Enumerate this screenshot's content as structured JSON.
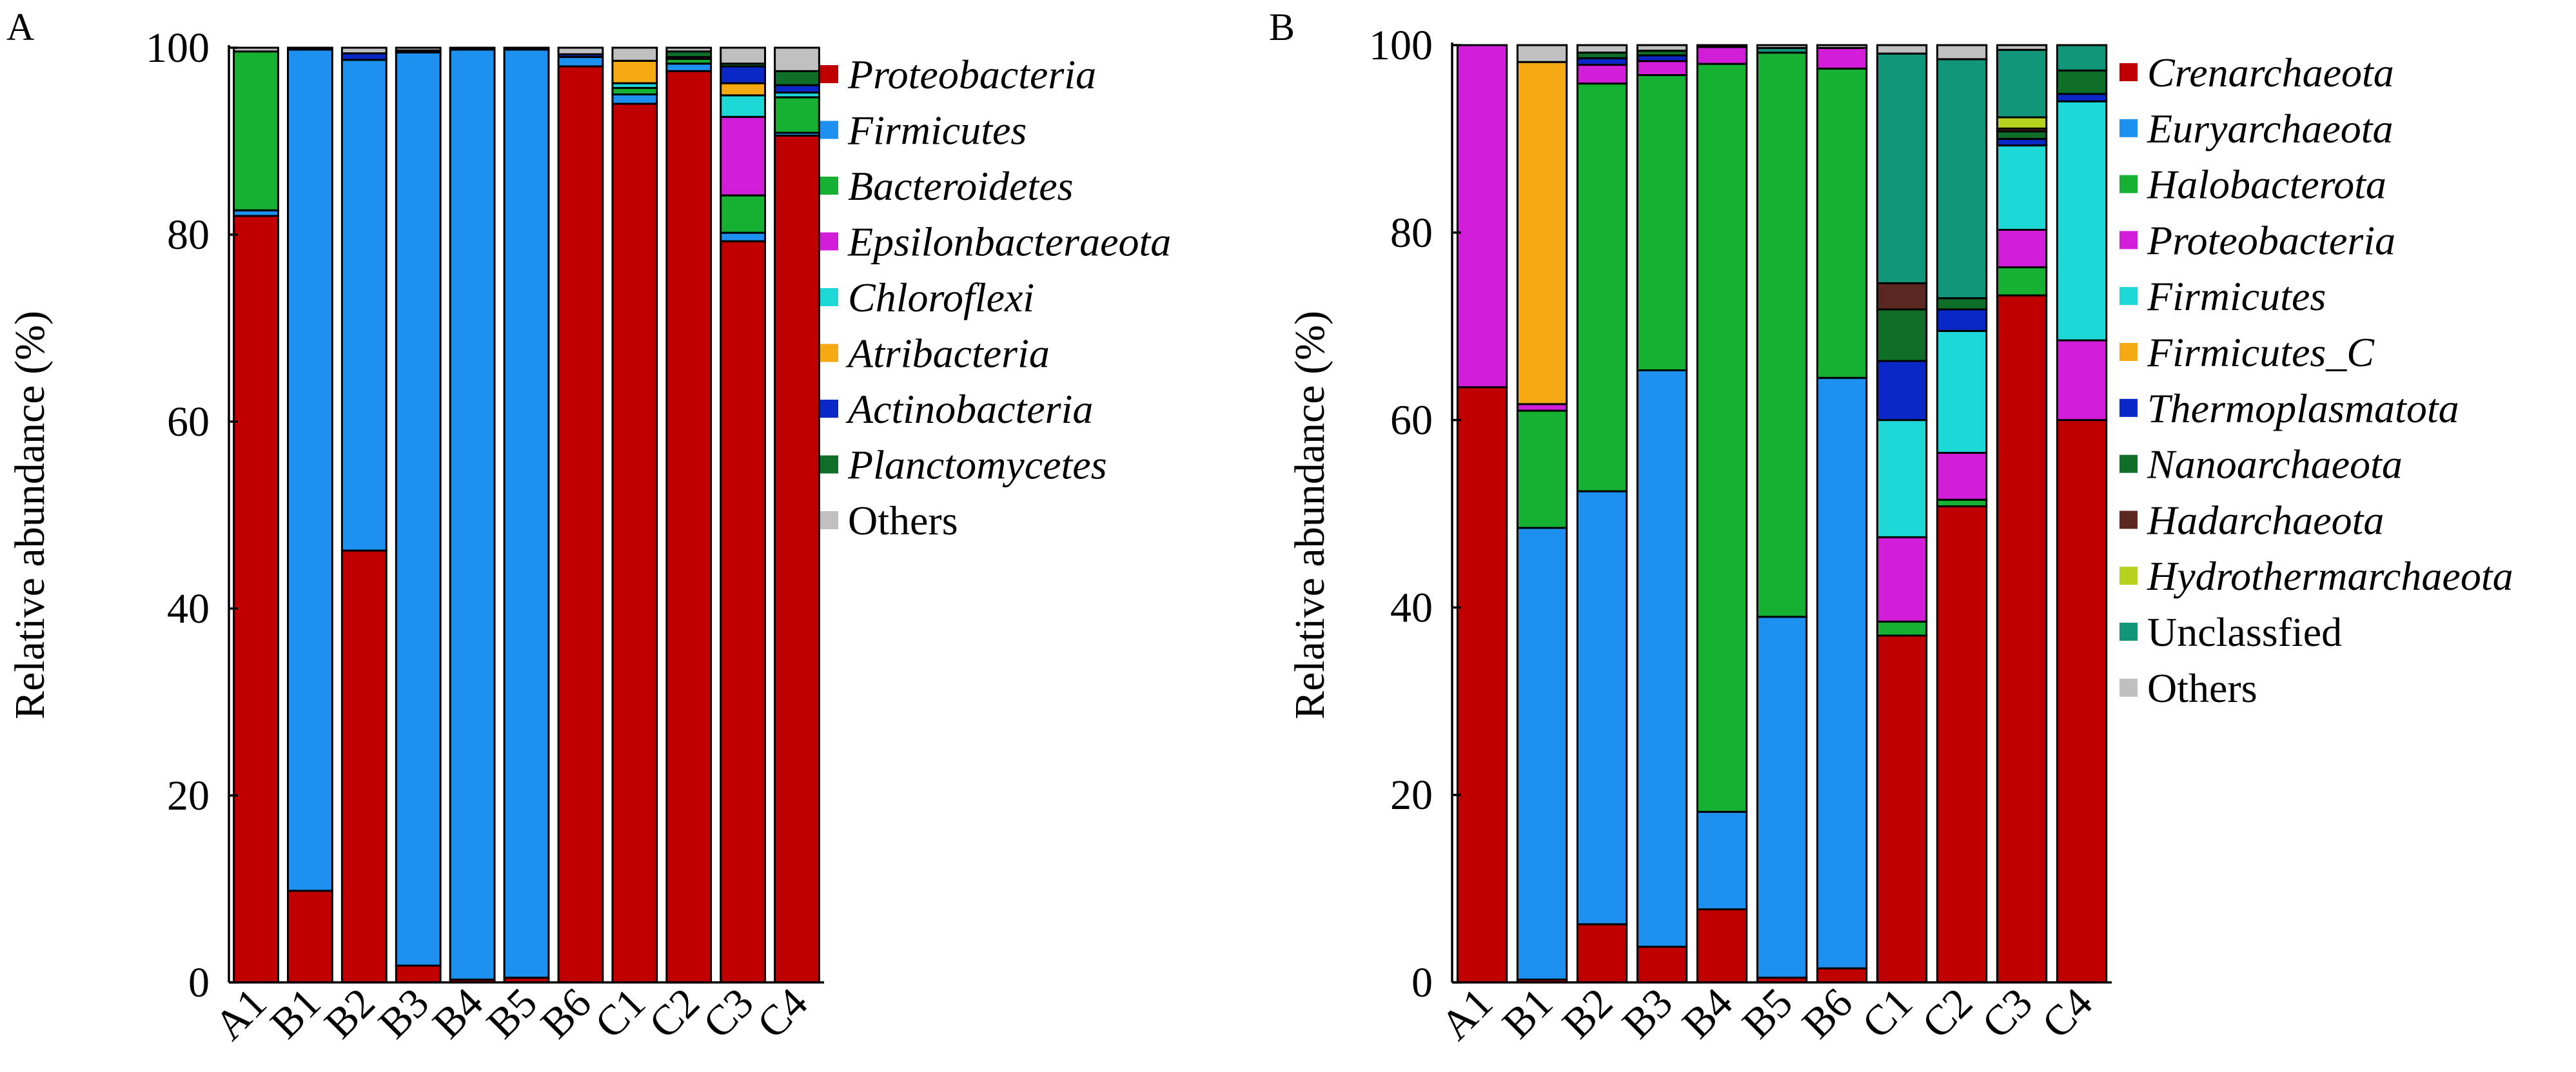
{
  "chart_data": [
    {
      "type": "bar",
      "stacked": true,
      "panel_label": "A",
      "title": "",
      "xlabel": "",
      "ylabel": "Relative abundance (%)",
      "ylim": [
        0,
        100
      ],
      "yticks": [
        0,
        20,
        40,
        60,
        80,
        100
      ],
      "grid": false,
      "legend_position": "right",
      "categories": [
        "A1",
        "B1",
        "B2",
        "B3",
        "B4",
        "B5",
        "B6",
        "C1",
        "C2",
        "C3",
        "C4"
      ],
      "series": [
        {
          "name": "Proteobacteria",
          "italic": true,
          "color": "#C00000",
          "values": [
            82.0,
            9.8,
            46.2,
            1.8,
            0.3,
            0.5,
            98.0,
            94.0,
            97.5,
            79.3,
            90.6
          ]
        },
        {
          "name": "Firmicutes",
          "italic": true,
          "color": "#1E90F0",
          "values": [
            0.6,
            90.0,
            52.5,
            97.7,
            99.5,
            99.3,
            1.0,
            1.0,
            0.8,
            0.9,
            0.3
          ]
        },
        {
          "name": "Bacteroidetes",
          "italic": true,
          "color": "#16B032",
          "values": [
            17.0,
            0.0,
            0.0,
            0.0,
            0.0,
            0.0,
            0.0,
            0.7,
            0.5,
            4.0,
            3.8
          ]
        },
        {
          "name": "Epsilonbacteraeota",
          "italic": true,
          "color": "#D21ED9",
          "values": [
            0.0,
            0.0,
            0.0,
            0.0,
            0.0,
            0.0,
            0.0,
            0.0,
            0.0,
            8.4,
            0.0
          ]
        },
        {
          "name": "Chloroflexi",
          "italic": true,
          "color": "#1ED7D7",
          "values": [
            0.0,
            0.0,
            0.0,
            0.0,
            0.0,
            0.0,
            0.0,
            0.5,
            0.0,
            2.3,
            0.5
          ]
        },
        {
          "name": "Atribacteria",
          "italic": true,
          "color": "#F5AA14",
          "values": [
            0.0,
            0.0,
            0.0,
            0.0,
            0.0,
            0.0,
            0.0,
            2.4,
            0.0,
            1.3,
            0.0
          ]
        },
        {
          "name": "Actinobacteria",
          "italic": true,
          "color": "#0A28C8",
          "values": [
            0.0,
            0.0,
            0.7,
            0.2,
            0.0,
            0.0,
            0.3,
            0.0,
            0.2,
            1.8,
            0.8
          ]
        },
        {
          "name": "Planctomycetes",
          "italic": true,
          "color": "#0F6E28",
          "values": [
            0.0,
            0.0,
            0.0,
            0.0,
            0.0,
            0.0,
            0.0,
            0.0,
            0.6,
            0.3,
            1.5
          ]
        },
        {
          "name": "Others",
          "italic": false,
          "color": "#C0C0C0",
          "values": [
            0.4,
            0.2,
            0.6,
            0.3,
            0.2,
            0.2,
            0.7,
            1.4,
            0.4,
            1.7,
            2.5
          ]
        }
      ]
    },
    {
      "type": "bar",
      "stacked": true,
      "panel_label": "B",
      "title": "",
      "xlabel": "",
      "ylabel": "Relative abundance (%)",
      "ylim": [
        0,
        100
      ],
      "yticks": [
        0,
        20,
        40,
        60,
        80,
        100
      ],
      "grid": false,
      "legend_position": "right",
      "categories": [
        "A1",
        "B1",
        "B2",
        "B3",
        "B4",
        "B5",
        "B6",
        "C1",
        "C2",
        "C3",
        "C4"
      ],
      "series": [
        {
          "name": "Crenarchaeota",
          "italic": true,
          "color": "#C00000",
          "values": [
            63.5,
            0.3,
            6.2,
            3.8,
            7.8,
            0.5,
            1.5,
            37.0,
            50.8,
            73.3,
            60.0
          ]
        },
        {
          "name": "Euryarchaeota",
          "italic": true,
          "color": "#1E90F0",
          "values": [
            0.0,
            48.2,
            46.2,
            61.5,
            10.4,
            38.5,
            63.0,
            0.0,
            0.0,
            0.0,
            0.0
          ]
        },
        {
          "name": "Halobacterota",
          "italic": true,
          "color": "#16B032",
          "values": [
            0.0,
            12.5,
            43.5,
            31.5,
            79.8,
            60.2,
            33.0,
            1.5,
            0.7,
            3.0,
            0.0
          ]
        },
        {
          "name": "Proteobacteria",
          "italic": true,
          "color": "#D21ED9",
          "values": [
            36.5,
            0.7,
            2.0,
            1.5,
            1.8,
            0.0,
            2.2,
            9.0,
            5.0,
            4.0,
            8.5
          ]
        },
        {
          "name": "Firmicutes",
          "italic": true,
          "color": "#1ED7D7",
          "values": [
            0.0,
            0.0,
            0.0,
            0.0,
            0.0,
            0.0,
            0.0,
            12.5,
            13.0,
            9.0,
            25.5
          ]
        },
        {
          "name": "Firmicutes_C",
          "italic": true,
          "color": "#F5AA14",
          "values": [
            0.0,
            36.5,
            0.0,
            0.0,
            0.0,
            0.0,
            0.0,
            0.0,
            0.0,
            0.0,
            0.0
          ]
        },
        {
          "name": "Thermoplasmatota",
          "italic": true,
          "color": "#0A28C8",
          "values": [
            0.0,
            0.0,
            0.7,
            0.6,
            0.0,
            0.0,
            0.0,
            6.3,
            2.3,
            0.7,
            0.8
          ]
        },
        {
          "name": "Nanoarchaeota",
          "italic": true,
          "color": "#0F6E28",
          "values": [
            0.0,
            0.0,
            0.6,
            0.5,
            0.0,
            0.0,
            0.0,
            5.5,
            1.2,
            0.8,
            2.5
          ]
        },
        {
          "name": "Hadarchaeota",
          "italic": true,
          "color": "#5A2820",
          "values": [
            0.0,
            0.0,
            0.0,
            0.0,
            0.0,
            0.0,
            0.0,
            2.8,
            0.0,
            0.3,
            0.0
          ]
        },
        {
          "name": "Hydrothermarchaeota",
          "italic": true,
          "color": "#B4D21E",
          "values": [
            0.0,
            0.0,
            0.0,
            0.0,
            0.0,
            0.0,
            0.0,
            0.0,
            0.0,
            1.2,
            0.0
          ]
        },
        {
          "name": "Unclassfied",
          "italic": false,
          "color": "#12967A",
          "values": [
            0.0,
            0.0,
            0.0,
            0.0,
            0.0,
            0.5,
            0.0,
            24.5,
            25.5,
            7.2,
            2.7
          ]
        },
        {
          "name": "Others",
          "italic": false,
          "color": "#C0C0C0",
          "values": [
            0.0,
            1.8,
            0.8,
            0.6,
            0.2,
            0.3,
            0.3,
            0.9,
            1.5,
            0.5,
            0.0
          ]
        }
      ]
    }
  ]
}
